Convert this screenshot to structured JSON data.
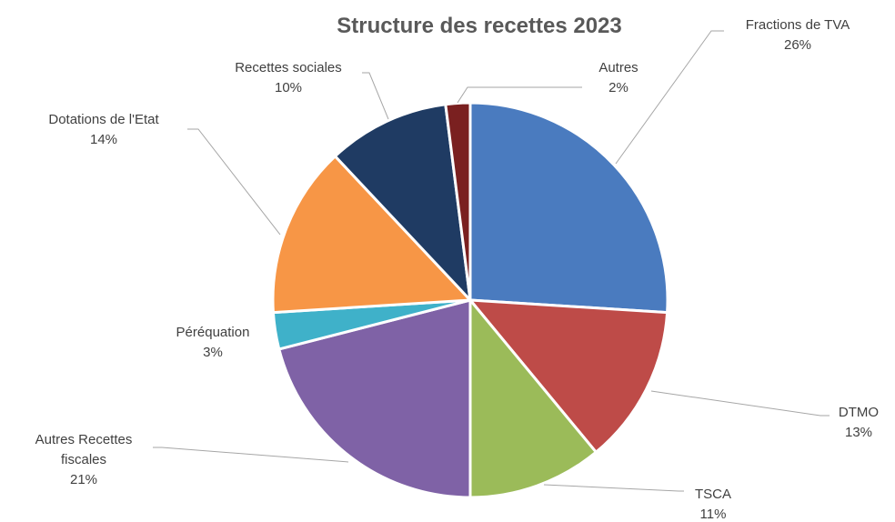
{
  "chart_data": {
    "type": "pie",
    "title": "Structure des  recettes  2023",
    "slices": [
      {
        "name": "Fractions de  TVA",
        "lines": [
          "Fractions de  TVA"
        ],
        "value": 26,
        "pct_label": "26%",
        "color": "#4a7bbf"
      },
      {
        "name": "DTMO",
        "lines": [
          "DTMO"
        ],
        "value": 13,
        "pct_label": "13%",
        "color": "#be4b48"
      },
      {
        "name": "TSCA",
        "lines": [
          "TSCA"
        ],
        "value": 11,
        "pct_label": "11%",
        "color": "#9bbb59"
      },
      {
        "name": "Autres Recettes fiscales",
        "lines": [
          "Autres  Recettes",
          "fiscales"
        ],
        "value": 21,
        "pct_label": "21%",
        "color": "#7f62a6"
      },
      {
        "name": "Péréquation",
        "lines": [
          "Péréquation"
        ],
        "value": 3,
        "pct_label": "3%",
        "color": "#3fb1c9"
      },
      {
        "name": "Dotations de l'Etat",
        "lines": [
          "Dotations de l'Etat"
        ],
        "value": 14,
        "pct_label": "14%",
        "color": "#f79646"
      },
      {
        "name": "Recettes sociales",
        "lines": [
          "Recettes sociales"
        ],
        "value": 10,
        "pct_label": "10%",
        "color": "#1f3b63"
      },
      {
        "name": "Autres",
        "lines": [
          "Autres"
        ],
        "value": 2,
        "pct_label": "2%",
        "color": "#7a2020"
      }
    ]
  }
}
